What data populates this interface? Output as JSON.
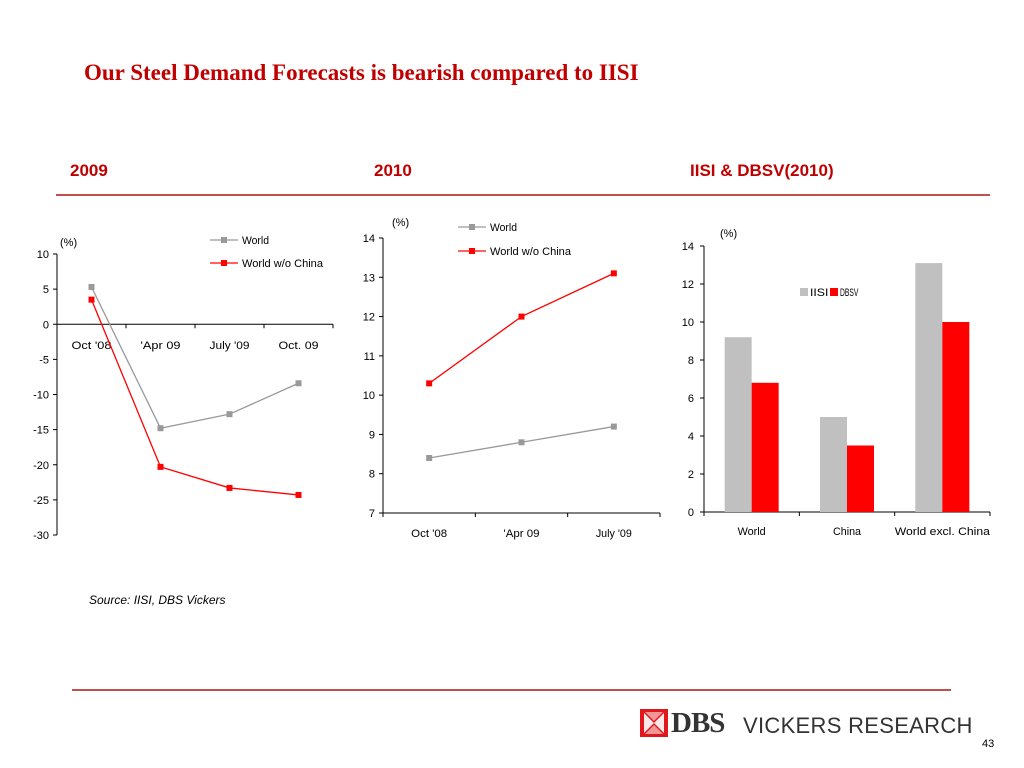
{
  "slide": {
    "title": "Our Steel Demand Forecasts is bearish compared to IISI",
    "source": "Source: IISI, DBS Vickers",
    "page_number": "43",
    "logo_brand": "DBS",
    "logo_text": "VICKERS RESEARCH"
  },
  "sections": [
    "2009",
    "2010",
    "IISI & DBSV(2010)"
  ],
  "colors": {
    "accent": "#c00000",
    "rule": "#c0504d",
    "series_world": "#999999",
    "series_world_wo_china": "#ff0000",
    "bar_iisi": "#c0c0c0",
    "bar_dbsv": "#ff0000"
  },
  "chart_data": [
    {
      "type": "line",
      "unit_label": "(%)",
      "categories": [
        "Oct '08",
        "'Apr 09",
        "July '09",
        "Oct. 09"
      ],
      "series": [
        {
          "name": "World",
          "values": [
            5.3,
            -14.8,
            -12.8,
            -8.4
          ]
        },
        {
          "name": "World w/o China",
          "values": [
            3.5,
            -20.3,
            -23.3,
            -24.3
          ]
        }
      ],
      "ylim": [
        -30,
        10
      ],
      "yticks": [
        10,
        5,
        0,
        -5,
        -10,
        -15,
        -20,
        -25,
        -30
      ],
      "grid": false,
      "legend": "top-right"
    },
    {
      "type": "line",
      "unit_label": "(%)",
      "categories": [
        "Oct '08",
        "'Apr 09",
        "July '09"
      ],
      "series": [
        {
          "name": "World",
          "values": [
            8.4,
            8.8,
            9.2
          ]
        },
        {
          "name": "World w/o China",
          "values": [
            10.3,
            12.0,
            13.1
          ]
        }
      ],
      "ylim": [
        7,
        14
      ],
      "yticks": [
        14,
        13,
        12,
        11,
        10,
        9,
        8,
        7
      ],
      "grid": false,
      "legend": "top-right"
    },
    {
      "type": "bar",
      "unit_label": "(%)",
      "categories": [
        "World",
        "China",
        "World excl. China"
      ],
      "series": [
        {
          "name": "IISI",
          "values": [
            9.2,
            5.0,
            13.1
          ]
        },
        {
          "name": "DBSV",
          "values": [
            6.8,
            3.5,
            10.0
          ]
        }
      ],
      "ylim": [
        0,
        14
      ],
      "yticks": [
        14,
        12,
        10,
        8,
        6,
        4,
        2,
        0
      ],
      "grid": false,
      "legend": "top-center"
    }
  ]
}
